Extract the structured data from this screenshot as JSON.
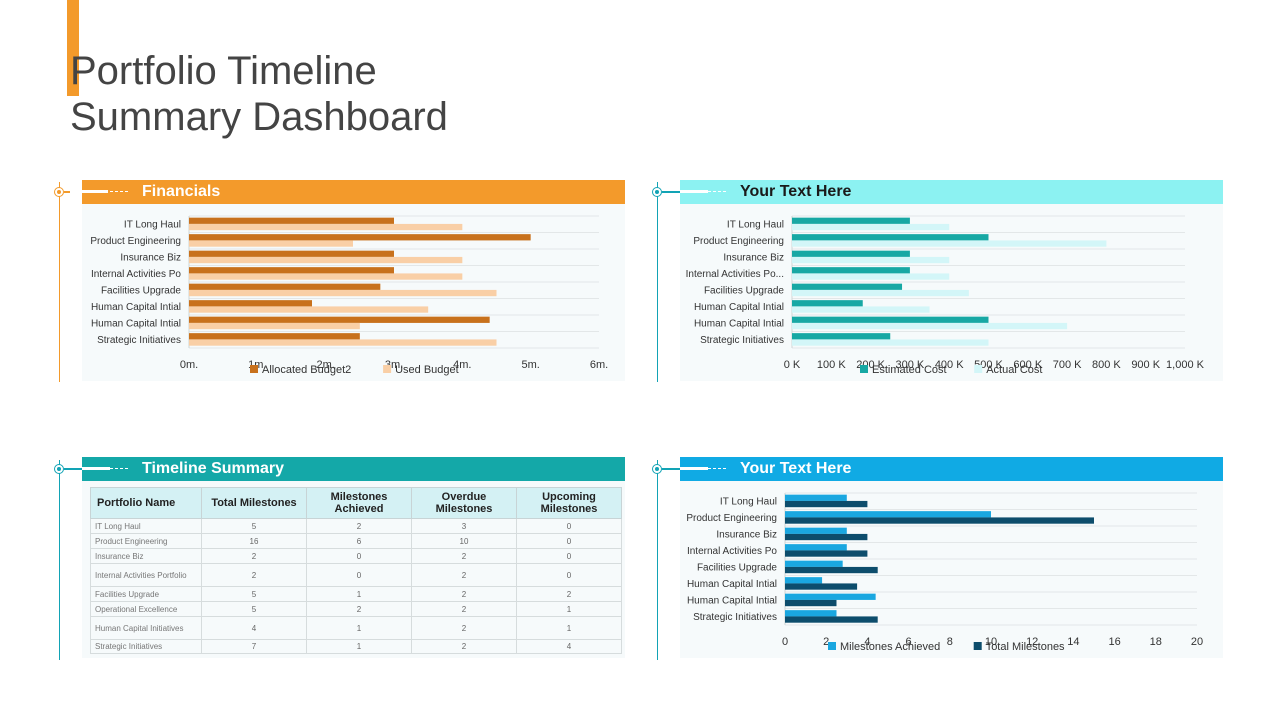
{
  "page": {
    "title_line1": "Portfolio Timeline",
    "title_line2": "Summary Dashboard"
  },
  "colors": {
    "orange": "#f39a2b",
    "teal_light": "#8cf2f2",
    "teal_dark": "#14a8a8",
    "blue": "#10aae4"
  },
  "panels": {
    "financials": {
      "title": "Financials"
    },
    "cost": {
      "title": "Your Text Here"
    },
    "timeline": {
      "title": "Timeline Summary"
    },
    "milestones": {
      "title": "Your Text Here"
    }
  },
  "chart_data": [
    {
      "id": "financials",
      "type": "bar",
      "orientation": "horizontal",
      "categories": [
        "IT Long Haul",
        "Product Engineering",
        "Insurance Biz",
        "Internal Activities Po",
        "Facilities Upgrade",
        "Human Capital Intial",
        "Human Capital Intial",
        "Strategic Initiatives"
      ],
      "series": [
        {
          "name": "Allocated Budget2",
          "color": "#c8711c",
          "values": [
            3,
            5,
            3,
            3,
            2.8,
            1.8,
            4.4,
            2.5
          ]
        },
        {
          "name": "Used Budget",
          "color": "#f9cfa6",
          "values": [
            4,
            2.4,
            4,
            4,
            4.5,
            3.5,
            2.5,
            4.5
          ]
        }
      ],
      "xlim": [
        0,
        6
      ],
      "xticks": [
        0,
        1,
        2,
        3,
        4,
        5,
        6
      ],
      "xtick_labels": [
        "0m.",
        "1m.",
        "2m.",
        "3m.",
        "4m.",
        "5m.",
        "6m."
      ],
      "legend": "bottom"
    },
    {
      "id": "cost",
      "type": "bar",
      "orientation": "horizontal",
      "categories": [
        "IT Long Haul",
        "Product Engineering",
        "Insurance Biz",
        "Internal Activities Po...",
        "Facilities Upgrade",
        "Human Capital Intial",
        "Human Capital Intial",
        "Strategic Initiatives"
      ],
      "series": [
        {
          "name": "Estimated Cost",
          "color": "#17a8a4",
          "values": [
            300,
            500,
            300,
            300,
            280,
            180,
            500,
            250
          ]
        },
        {
          "name": "Actual Cost",
          "color": "#d3f6f8",
          "values": [
            400,
            800,
            400,
            400,
            450,
            350,
            700,
            500
          ]
        }
      ],
      "xlim": [
        0,
        1000
      ],
      "xticks": [
        0,
        100,
        200,
        300,
        400,
        500,
        600,
        700,
        800,
        900,
        1000
      ],
      "xtick_labels": [
        "0 K",
        "100 K",
        "200 K",
        "300 K",
        "400 K",
        "500 K",
        "600 K",
        "700 K",
        "800 K",
        "900 K",
        "1,000 K"
      ],
      "legend": "bottom"
    },
    {
      "id": "milestones",
      "type": "bar",
      "orientation": "horizontal",
      "categories": [
        "IT Long Haul",
        "Product Engineering",
        "Insurance Biz",
        "Internal Activities Po",
        "Facilities Upgrade",
        "Human Capital Intial",
        "Human Capital Intial",
        "Strategic Initiatives"
      ],
      "series": [
        {
          "name": "Milestones Achieved",
          "color": "#1aa7e0",
          "values": [
            3,
            10,
            3,
            3,
            2.8,
            1.8,
            4.4,
            2.5
          ]
        },
        {
          "name": "Total Milestones",
          "color": "#0d4d6c",
          "values": [
            4,
            15,
            4,
            4,
            4.5,
            3.5,
            2.5,
            4.5
          ]
        }
      ],
      "xlim": [
        0,
        20
      ],
      "xticks": [
        0,
        2,
        4,
        6,
        8,
        10,
        12,
        14,
        16,
        18,
        20
      ],
      "xtick_labels": [
        "0",
        "2",
        "4",
        "6",
        "8",
        "10",
        "12",
        "14",
        "16",
        "18",
        "20"
      ],
      "legend": "bottom"
    },
    {
      "id": "timeline_table",
      "type": "table",
      "headers": [
        "Portfolio  Name",
        "Total Milestones",
        "Milestones Achieved",
        "Overdue Milestones",
        "Upcoming Milestones"
      ],
      "rows": [
        [
          "IT Long Haul",
          "5",
          "2",
          "3",
          "0"
        ],
        [
          "Product Engineering",
          "16",
          "6",
          "10",
          "0"
        ],
        [
          "Insurance Biz",
          "2",
          "0",
          "2",
          "0"
        ],
        [
          "Internal  Activities Portfolio",
          "2",
          "0",
          "2",
          "0"
        ],
        [
          "Facilities  Upgrade",
          "5",
          "1",
          "2",
          "2"
        ],
        [
          "Operational  Excellence",
          "5",
          "2",
          "2",
          "1"
        ],
        [
          "Human  Capital Initiatives",
          "4",
          "1",
          "2",
          "1"
        ],
        [
          "Strategic  Initiatives",
          "7",
          "1",
          "2",
          "4"
        ]
      ]
    }
  ]
}
